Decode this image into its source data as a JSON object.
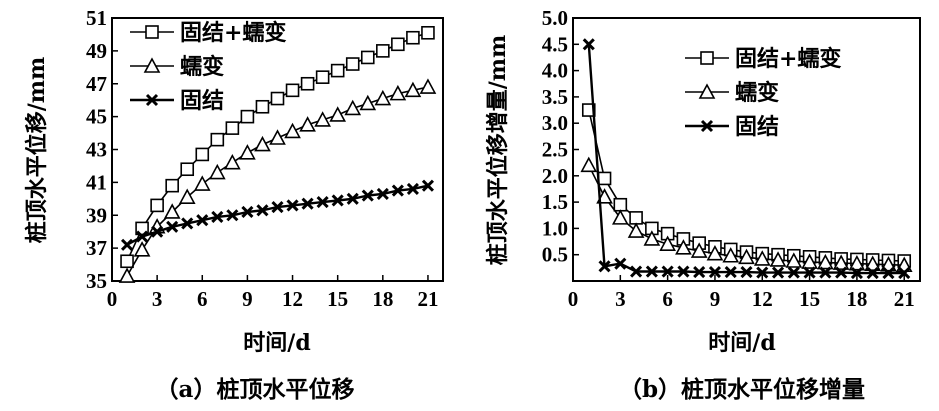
{
  "chart_data": [
    {
      "type": "line",
      "caption": "（a）桩顶水平位移",
      "xlabel": "时间/d",
      "ylabel": "桩顶水平位移/mm",
      "xlim": [
        0,
        22
      ],
      "ylim": [
        35,
        51
      ],
      "xticks": [
        "0",
        "3",
        "6",
        "9",
        "12",
        "15",
        "18",
        "21"
      ],
      "yticks": [
        "35",
        "37",
        "39",
        "41",
        "43",
        "45",
        "47",
        "49",
        "51"
      ],
      "legend_position": "top-left",
      "x": [
        1,
        2,
        3,
        4,
        5,
        6,
        7,
        8,
        9,
        10,
        11,
        12,
        13,
        14,
        15,
        16,
        17,
        18,
        19,
        20,
        21
      ],
      "series": [
        {
          "name": "固结+蠕变",
          "marker": "square",
          "values": [
            36.2,
            38.2,
            39.6,
            40.8,
            41.8,
            42.7,
            43.6,
            44.3,
            45.0,
            45.6,
            46.1,
            46.6,
            47.0,
            47.4,
            47.8,
            48.2,
            48.6,
            49.0,
            49.4,
            49.8,
            50.1
          ]
        },
        {
          "name": "蠕变",
          "marker": "triangle",
          "values": [
            35.3,
            36.9,
            38.3,
            39.2,
            40.1,
            40.9,
            41.6,
            42.2,
            42.8,
            43.3,
            43.7,
            44.1,
            44.5,
            44.8,
            45.1,
            45.5,
            45.8,
            46.1,
            46.4,
            46.6,
            46.8
          ]
        },
        {
          "name": "固结",
          "marker": "x",
          "values": [
            37.2,
            37.7,
            38.0,
            38.3,
            38.5,
            38.7,
            38.9,
            39.0,
            39.2,
            39.3,
            39.5,
            39.6,
            39.7,
            39.8,
            39.9,
            40.0,
            40.2,
            40.3,
            40.5,
            40.6,
            40.8
          ]
        }
      ]
    },
    {
      "type": "line",
      "caption": "（b）桩顶水平位移增量",
      "xlabel": "时间/d",
      "ylabel": "桩顶水平位移增量/mm",
      "xlim": [
        0,
        22
      ],
      "ylim": [
        0,
        5
      ],
      "xticks": [
        "0",
        "3",
        "6",
        "9",
        "12",
        "15",
        "18",
        "21"
      ],
      "yticks": [
        "0.5",
        "1.0",
        "1.5",
        "2.0",
        "2.5",
        "3.0",
        "3.5",
        "4.0",
        "4.5",
        "5.0"
      ],
      "legend_position": "top-right",
      "x": [
        1,
        2,
        3,
        4,
        5,
        6,
        7,
        8,
        9,
        10,
        11,
        12,
        13,
        14,
        15,
        16,
        17,
        18,
        19,
        20,
        21
      ],
      "series": [
        {
          "name": "固结+蠕变",
          "marker": "square",
          "values": [
            3.25,
            1.95,
            1.45,
            1.2,
            1.0,
            0.9,
            0.8,
            0.72,
            0.65,
            0.6,
            0.55,
            0.52,
            0.5,
            0.48,
            0.46,
            0.44,
            0.42,
            0.41,
            0.4,
            0.39,
            0.38
          ]
        },
        {
          "name": "蠕变",
          "marker": "triangle",
          "values": [
            2.2,
            1.6,
            1.2,
            0.95,
            0.8,
            0.7,
            0.63,
            0.57,
            0.52,
            0.48,
            0.45,
            0.42,
            0.4,
            0.38,
            0.36,
            0.35,
            0.34,
            0.33,
            0.32,
            0.31,
            0.3
          ]
        },
        {
          "name": "固结",
          "marker": "x",
          "values": [
            4.5,
            0.28,
            0.33,
            0.18,
            0.18,
            0.18,
            0.18,
            0.17,
            0.17,
            0.17,
            0.17,
            0.16,
            0.16,
            0.16,
            0.16,
            0.16,
            0.16,
            0.15,
            0.15,
            0.15,
            0.15
          ]
        }
      ]
    }
  ]
}
